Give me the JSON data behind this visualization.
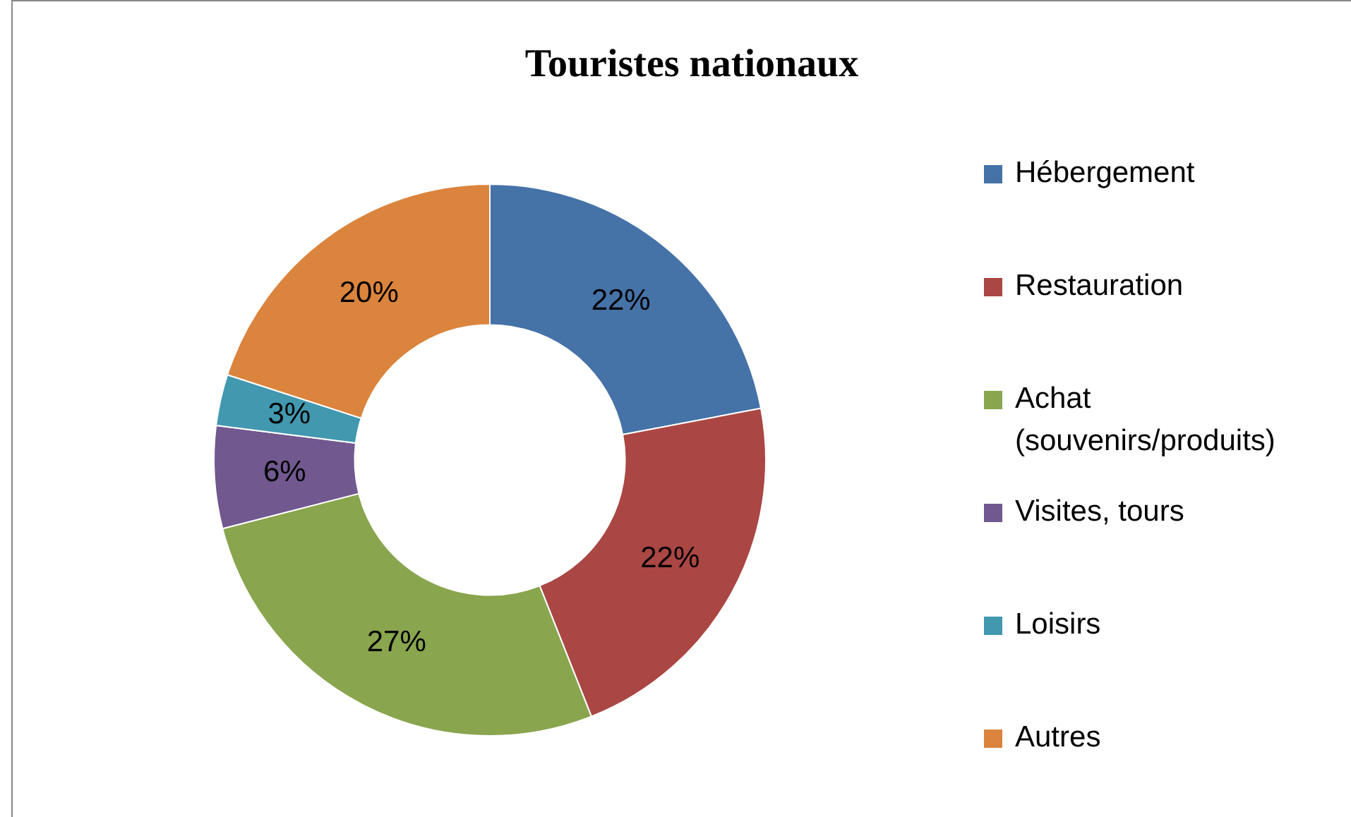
{
  "chart_data": {
    "type": "donut",
    "title": "Touristes nationaux",
    "categories": [
      "Hébergement",
      "Restauration",
      "Achat (souvenirs/produits)",
      "Visites, tours",
      "Loisirs",
      "Autres"
    ],
    "values": [
      22,
      22,
      27,
      6,
      3,
      20
    ],
    "value_labels": [
      "22%",
      "22%",
      "27%",
      "6%",
      "3%",
      "20%"
    ],
    "colors": [
      "#4572a7",
      "#aa4643",
      "#89a54e",
      "#71588f",
      "#4198af",
      "#db843d"
    ],
    "legend": "right"
  }
}
